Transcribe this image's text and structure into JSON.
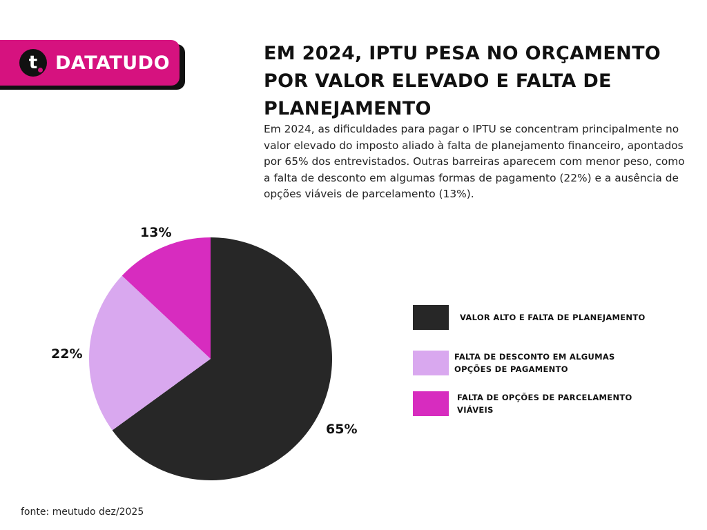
{
  "brand": {
    "logo_letter": "t",
    "name": "DATATUDO"
  },
  "header": {
    "title": "EM 2024, IPTU PESA NO ORÇAMENTO POR VALOR ELEVADO E FALTA DE PLANEJAMENTO",
    "description": "Em 2024, as dificuldades para pagar o IPTU se concentram principalmente no valor elevado do imposto aliado à falta de planejamento financeiro, apontados por 65% dos entrevistados. Outras barreiras aparecem com menor peso, como a falta de desconto em algumas formas de pagamento (22%) e a ausência de opções viáveis de parcelamento (13%)."
  },
  "chart_data": {
    "type": "pie",
    "title": "EM 2024, IPTU PESA NO ORÇAMENTO POR VALOR ELEVADO E FALTA DE PLANEJAMENTO",
    "legend_position": "right",
    "slices": [
      {
        "label": "VALOR ALTO E FALTA DE PLANEJAMENTO",
        "value": 65,
        "display": "65%",
        "color": "#272727"
      },
      {
        "label": "FALTA DE DESCONTO EM ALGUMAS OPÇÕES DE PAGAMENTO",
        "value": 22,
        "display": "22%",
        "color": "#d9a8ef"
      },
      {
        "label": "FALTA DE OPÇÕES DE PARCELAMENTO VIÁVEIS",
        "value": 13,
        "display": "13%",
        "color": "#d72cbf"
      }
    ]
  },
  "footer": {
    "source": "fonte: meutudo dez/2025"
  }
}
